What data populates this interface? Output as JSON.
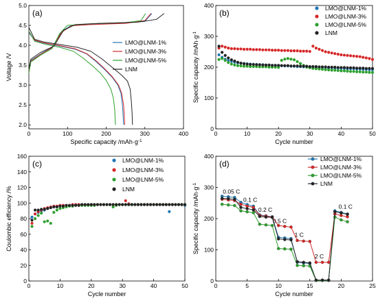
{
  "chart_data": [
    {
      "panel": "(a)",
      "type": "line",
      "xlabel": "Specific capacity /mAh·g",
      "xlabel_sup": "-1",
      "ylabel": "Voltage /V",
      "xlim": [
        0,
        400
      ],
      "ylim": [
        1.9,
        5.0
      ],
      "xticks": [
        0,
        100,
        200,
        300,
        400
      ],
      "yticks": [
        2.0,
        2.5,
        3.0,
        3.5,
        4.0,
        4.5,
        5.0
      ],
      "legend_position": "center-right",
      "series": [
        {
          "name": "LMO@LNM-1%",
          "color": "#1f77b4",
          "ends": [
            245,
            318
          ],
          "discharge": [
            [
              0,
              4.32
            ],
            [
              15,
              4.12
            ],
            [
              40,
              4.05
            ],
            [
              80,
              3.98
            ],
            [
              120,
              3.9
            ],
            [
              150,
              3.78
            ],
            [
              175,
              3.58
            ],
            [
              195,
              3.4
            ],
            [
              215,
              3.2
            ],
            [
              230,
              3.0
            ],
            [
              238,
              2.8
            ],
            [
              242,
              2.5
            ],
            [
              244,
              2.2
            ],
            [
              245,
              2.0
            ]
          ],
          "charge": [
            [
              0,
              3.38
            ],
            [
              5,
              3.62
            ],
            [
              30,
              3.78
            ],
            [
              60,
              3.95
            ],
            [
              85,
              4.35
            ],
            [
              110,
              4.5
            ],
            [
              160,
              4.53
            ],
            [
              250,
              4.56
            ],
            [
              300,
              4.6
            ],
            [
              318,
              4.8
            ]
          ]
        },
        {
          "name": "LMO@LNM-3%",
          "color": "#d62728",
          "ends": [
            248,
            316
          ],
          "discharge": [
            [
              0,
              4.34
            ],
            [
              15,
              4.13
            ],
            [
              40,
              4.06
            ],
            [
              80,
              3.99
            ],
            [
              120,
              3.91
            ],
            [
              150,
              3.79
            ],
            [
              175,
              3.6
            ],
            [
              195,
              3.42
            ],
            [
              215,
              3.22
            ],
            [
              232,
              3.0
            ],
            [
              240,
              2.8
            ],
            [
              245,
              2.5
            ],
            [
              247,
              2.2
            ],
            [
              248,
              2.0
            ]
          ],
          "charge": [
            [
              0,
              3.35
            ],
            [
              5,
              3.6
            ],
            [
              30,
              3.77
            ],
            [
              60,
              3.94
            ],
            [
              85,
              4.33
            ],
            [
              110,
              4.49
            ],
            [
              160,
              4.52
            ],
            [
              250,
              4.55
            ],
            [
              300,
              4.62
            ],
            [
              316,
              4.8
            ]
          ]
        },
        {
          "name": "LMO@LNM-5%",
          "color": "#2ca02c",
          "ends": [
            224,
            302
          ],
          "discharge": [
            [
              0,
              4.36
            ],
            [
              15,
              4.1
            ],
            [
              40,
              4.03
            ],
            [
              80,
              3.95
            ],
            [
              115,
              3.85
            ],
            [
              140,
              3.68
            ],
            [
              165,
              3.48
            ],
            [
              185,
              3.3
            ],
            [
              200,
              3.12
            ],
            [
              212,
              2.9
            ],
            [
              218,
              2.7
            ],
            [
              222,
              2.4
            ],
            [
              223,
              2.2
            ],
            [
              224,
              2.0
            ]
          ],
          "charge": [
            [
              0,
              3.3
            ],
            [
              5,
              3.58
            ],
            [
              30,
              3.75
            ],
            [
              60,
              3.92
            ],
            [
              80,
              4.3
            ],
            [
              100,
              4.5
            ],
            [
              160,
              4.54
            ],
            [
              250,
              4.57
            ],
            [
              290,
              4.62
            ],
            [
              302,
              4.8
            ]
          ]
        },
        {
          "name": "LNM",
          "color": "#222222",
          "ends": [
            268,
            350
          ],
          "discharge": [
            [
              0,
              4.45
            ],
            [
              15,
              4.15
            ],
            [
              40,
              4.08
            ],
            [
              80,
              4.02
            ],
            [
              125,
              3.95
            ],
            [
              160,
              3.85
            ],
            [
              190,
              3.65
            ],
            [
              215,
              3.45
            ],
            [
              240,
              3.25
            ],
            [
              255,
              3.1
            ],
            [
              262,
              2.9
            ],
            [
              265,
              2.6
            ],
            [
              267,
              2.3
            ],
            [
              268,
              2.0
            ]
          ],
          "charge": [
            [
              0,
              3.4
            ],
            [
              5,
              3.65
            ],
            [
              30,
              3.82
            ],
            [
              65,
              3.98
            ],
            [
              90,
              4.38
            ],
            [
              120,
              4.52
            ],
            [
              180,
              4.55
            ],
            [
              280,
              4.58
            ],
            [
              330,
              4.65
            ],
            [
              350,
              4.8
            ]
          ]
        }
      ]
    },
    {
      "panel": "(b)",
      "type": "scatter",
      "xlabel": "Cycle number",
      "ylabel": "Specific capacity /mAh·g",
      "ylabel_sup": "-1",
      "xlim": [
        0,
        50
      ],
      "ylim": [
        0,
        400
      ],
      "xticks": [
        0,
        10,
        20,
        30,
        40,
        50
      ],
      "yticks": [
        0,
        100,
        200,
        300,
        400
      ],
      "legend_position": "top-right",
      "series": [
        {
          "name": "LMO@LNM-1%",
          "color": "#1f77b4",
          "values": [
            240,
            232,
            226,
            222,
            219,
            216,
            214,
            213,
            212,
            211,
            210,
            209,
            209,
            208,
            208,
            207,
            207,
            206,
            206,
            205,
            205,
            204,
            204,
            203,
            203,
            202,
            202,
            201,
            201,
            200,
            200,
            200,
            199,
            199,
            198,
            198,
            198,
            197,
            197,
            196,
            196,
            195,
            195,
            195,
            194,
            194,
            193,
            193,
            192,
            192
          ]
        },
        {
          "name": "LMO@LNM-3%",
          "color": "#d62728",
          "values": [
            262,
            268,
            265,
            262,
            260,
            260,
            259,
            259,
            258,
            258,
            258,
            257,
            257,
            257,
            256,
            256,
            256,
            255,
            255,
            255,
            254,
            254,
            254,
            253,
            253,
            253,
            252,
            252,
            252,
            251,
            268,
            262,
            258,
            254,
            250,
            248,
            246,
            244,
            242,
            240,
            239,
            238,
            237,
            236,
            235,
            234,
            232,
            230,
            228,
            225
          ]
        },
        {
          "name": "LMO@LNM-5%",
          "color": "#2ca02c",
          "values": [
            225,
            228,
            222,
            215,
            210,
            207,
            205,
            204,
            203,
            203,
            202,
            202,
            202,
            201,
            201,
            201,
            200,
            200,
            200,
            199,
            222,
            226,
            228,
            226,
            224,
            218,
            212,
            206,
            200,
            198,
            196,
            195,
            194,
            193,
            192,
            191,
            190,
            190,
            189,
            188,
            188,
            187,
            186,
            186,
            185,
            185,
            184,
            184,
            183,
            183
          ]
        },
        {
          "name": "LNM",
          "color": "#222222",
          "values": [
            268,
            248,
            238,
            230,
            224,
            220,
            216,
            213,
            211,
            210,
            209,
            209,
            208,
            208,
            207,
            207,
            207,
            206,
            206,
            206,
            205,
            205,
            205,
            204,
            204,
            204,
            203,
            203,
            203,
            202,
            202,
            202,
            201,
            201,
            201,
            200,
            200,
            200,
            199,
            199,
            199,
            198,
            198,
            198,
            197,
            197,
            197,
            196,
            196,
            196
          ]
        }
      ]
    },
    {
      "panel": "(c)",
      "type": "scatter",
      "xlabel": "Cycle number",
      "ylabel": "Coulombic efficiency /%",
      "xlim": [
        0,
        50
      ],
      "ylim": [
        0,
        160
      ],
      "xticks": [
        0,
        10,
        20,
        30,
        40,
        50
      ],
      "yticks": [
        0,
        20,
        40,
        60,
        80,
        100,
        120,
        140,
        160
      ],
      "legend_position": "top-right",
      "series": [
        {
          "name": "LMO@LNM-1%",
          "color": "#1f77b4",
          "values": [
            82,
            86,
            88,
            90,
            91,
            93,
            94,
            95,
            96,
            96,
            97,
            97,
            97,
            97,
            98,
            98,
            98,
            98,
            98,
            98,
            98,
            98,
            98,
            98,
            98,
            98,
            98,
            98,
            98,
            98,
            98,
            98,
            98,
            98,
            98,
            98,
            98,
            98,
            98,
            98,
            98,
            98,
            98,
            98,
            89,
            98,
            98,
            98,
            98,
            97
          ]
        },
        {
          "name": "LMO@LNM-3%",
          "color": "#d62728",
          "values": [
            74,
            86,
            89,
            91,
            93,
            94,
            95,
            96,
            96,
            97,
            97,
            97,
            97,
            98,
            98,
            98,
            98,
            98,
            98,
            98,
            98,
            98,
            98,
            98,
            98,
            98,
            98,
            98,
            98,
            98,
            103,
            99,
            98,
            98,
            98,
            98,
            98,
            98,
            98,
            98,
            98,
            98,
            98,
            98,
            98,
            98,
            98,
            98,
            98,
            98
          ]
        },
        {
          "name": "LMO@LNM-5%",
          "color": "#2ca02c",
          "values": [
            70,
            80,
            84,
            87,
            76,
            77,
            74,
            88,
            91,
            93,
            94,
            95,
            96,
            96,
            97,
            97,
            97,
            97,
            97,
            97,
            97,
            98,
            98,
            98,
            98,
            98,
            95,
            97,
            98,
            98,
            98,
            98,
            98,
            98,
            98,
            98,
            98,
            98,
            98,
            98,
            98,
            98,
            98,
            98,
            98,
            98,
            98,
            98,
            98,
            98
          ]
        },
        {
          "name": "LNM",
          "color": "#222222",
          "values": [
            78,
            91,
            91,
            92,
            92,
            93,
            94,
            95,
            95,
            96,
            96,
            97,
            97,
            97,
            97,
            97,
            98,
            98,
            98,
            98,
            98,
            98,
            98,
            98,
            98,
            98,
            98,
            98,
            98,
            98,
            98,
            98,
            98,
            98,
            98,
            98,
            98,
            98,
            98,
            98,
            98,
            98,
            98,
            98,
            98,
            98,
            98,
            98,
            98,
            98
          ]
        }
      ]
    },
    {
      "panel": "(d)",
      "type": "line",
      "xlabel": "Cycle number",
      "ylabel": "Specific capacity /mAh·g",
      "ylabel_sup": "-1",
      "xlim": [
        0,
        25
      ],
      "ylim": [
        0,
        400
      ],
      "xticks": [
        0,
        5,
        10,
        15,
        20,
        25
      ],
      "yticks": [
        0,
        100,
        200,
        300,
        400
      ],
      "legend_position": "top-right",
      "rate_labels": [
        {
          "text": "0.05 C",
          "x": 2.5,
          "y": 280
        },
        {
          "text": "0.1 C",
          "x": 5.5,
          "y": 254
        },
        {
          "text": "0.2 C",
          "x": 7.9,
          "y": 222
        },
        {
          "text": "0.5 C",
          "x": 10.2,
          "y": 186
        },
        {
          "text": "1 C",
          "x": 13.3,
          "y": 142
        },
        {
          "text": "2 C",
          "x": 16.5,
          "y": 72
        },
        {
          "text": "0.1 C",
          "x": 20.7,
          "y": 232
        }
      ],
      "x": [
        1,
        2,
        3,
        4,
        5,
        6,
        7,
        8,
        9,
        10,
        11,
        12,
        13,
        14,
        15,
        16,
        17,
        18,
        19,
        20,
        21
      ],
      "series": [
        {
          "name": "LMO@LNM-1%",
          "color": "#1f77b4",
          "values": [
            272,
            270,
            268,
            252,
            245,
            240,
            212,
            209,
            206,
            140,
            138,
            136,
            60,
            58,
            56,
            2,
            2,
            2,
            225,
            220,
            215
          ]
        },
        {
          "name": "LMO@LNM-3%",
          "color": "#d62728",
          "values": [
            262,
            260,
            258,
            246,
            240,
            236,
            210,
            208,
            205,
            178,
            175,
            173,
            130,
            128,
            127,
            60,
            60,
            60,
            215,
            210,
            206
          ]
        },
        {
          "name": "LMO@LNM-5%",
          "color": "#2ca02c",
          "values": [
            246,
            244,
            242,
            225,
            222,
            219,
            182,
            180,
            178,
            104,
            103,
            102,
            50,
            49,
            48,
            2,
            2,
            2,
            205,
            196,
            190
          ]
        },
        {
          "name": "LNM",
          "color": "#222222",
          "values": [
            265,
            264,
            262,
            236,
            232,
            228,
            207,
            205,
            204,
            135,
            133,
            132,
            62,
            60,
            58,
            3,
            3,
            3,
            222,
            218,
            214
          ]
        }
      ]
    }
  ]
}
